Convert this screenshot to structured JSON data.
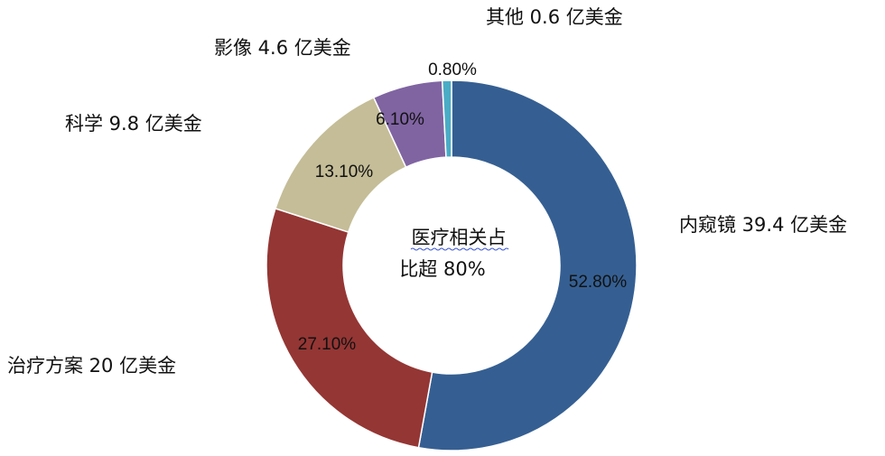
{
  "chart_data": {
    "type": "pie",
    "style": "donut",
    "center_text": [
      "医疗相关占",
      "比超 80%"
    ],
    "slices": [
      {
        "category": "内窥镜 39.4 亿美金",
        "value": 52.8,
        "percent_label": "52.80%",
        "color": "#355F92"
      },
      {
        "category": "治疗方案 20 亿美金",
        "value": 27.1,
        "percent_label": "27.10%",
        "color": "#943634"
      },
      {
        "category": "科学 9.8 亿美金",
        "value": 13.1,
        "percent_label": "13.10%",
        "color": "#C4BD97"
      },
      {
        "category": "影像 4.6 亿美金",
        "value": 6.1,
        "percent_label": "6.10%",
        "color": "#8064A2"
      },
      {
        "category": "其他 0.6 亿美金",
        "value": 0.8,
        "percent_label": "0.80%",
        "color": "#4BACC6"
      }
    ]
  }
}
